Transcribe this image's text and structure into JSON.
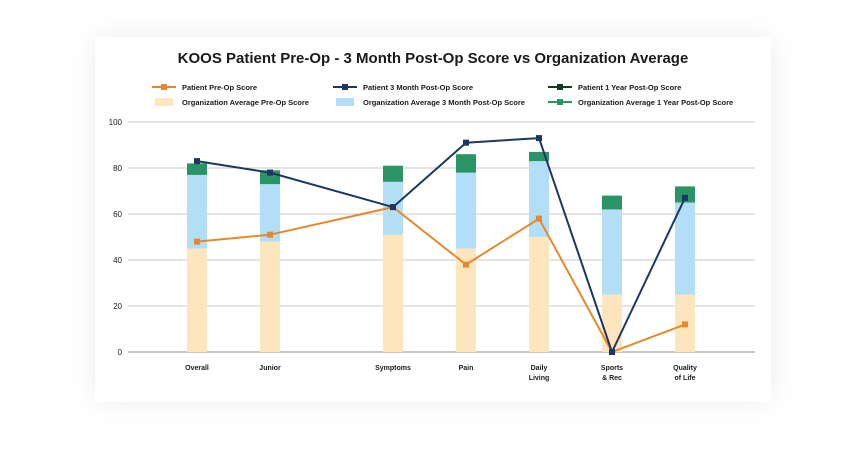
{
  "chart_data": {
    "type": "bar",
    "title": "KOOS Patient Pre-Op - 3 Month Post-Op Score vs Organization Average",
    "categories": [
      "Overall",
      "Junior",
      "Symptoms",
      "Pain",
      "Daily Living",
      "Sports & Rec",
      "Quality of Life"
    ],
    "category_lines": [
      [
        "Overall"
      ],
      [
        "Junior"
      ],
      [
        "Symptoms"
      ],
      [
        "Pain"
      ],
      [
        "Daily",
        "Living"
      ],
      [
        "Sports",
        "& Rec"
      ],
      [
        "Quality",
        "of Life"
      ]
    ],
    "ylim": [
      0,
      100
    ],
    "yticks": [
      0,
      20,
      40,
      60,
      80,
      100
    ],
    "ytick_labels": [
      "0",
      "20",
      "40",
      "60",
      "80",
      "100"
    ],
    "grid": true,
    "legend_placement": "top",
    "bar_series": [
      {
        "name": "Organization Average Pre-Op Score",
        "color": "#fde5bd",
        "values": [
          45,
          48,
          51,
          45,
          50,
          25,
          25
        ]
      },
      {
        "name": "Organization Average 3 Month Post-Op Score",
        "color": "#b3def7",
        "values": [
          77,
          73,
          74,
          78,
          83,
          62,
          65
        ]
      },
      {
        "name": "Organization Average 1 Year Post-Op Score",
        "color": "#2a9466",
        "values": [
          82,
          79,
          81,
          86,
          87,
          68,
          72
        ]
      }
    ],
    "line_series": [
      {
        "name": "Patient Pre-Op Score",
        "color": "#e6892c",
        "values": [
          48,
          51,
          63,
          38,
          58,
          0,
          12
        ]
      },
      {
        "name": "Patient 3 Month Post-Op Score",
        "color": "#1c3761",
        "values": [
          83,
          78,
          63,
          91,
          93,
          0,
          67
        ]
      },
      {
        "name": "Patient 1 Year Post-Op Score",
        "color": "#103a22",
        "values": []
      }
    ]
  },
  "legend": [
    {
      "label": "Patient Pre-Op Score",
      "kind": "line",
      "color": "#e6892c"
    },
    {
      "label": "Patient 3 Month Post-Op Score",
      "kind": "line",
      "color": "#1c3761"
    },
    {
      "label": "Patient 1 Year Post-Op Score",
      "kind": "line",
      "color": "#103a22"
    },
    {
      "label": "Organization Average Pre-Op Score",
      "kind": "bar",
      "color": "#fde5bd"
    },
    {
      "label": "Organization Average 3 Month Post-Op Score",
      "kind": "bar",
      "color": "#b3def7"
    },
    {
      "label": "Organization Average 1 Year Post-Op Score",
      "kind": "line",
      "color": "#2a9466"
    }
  ]
}
